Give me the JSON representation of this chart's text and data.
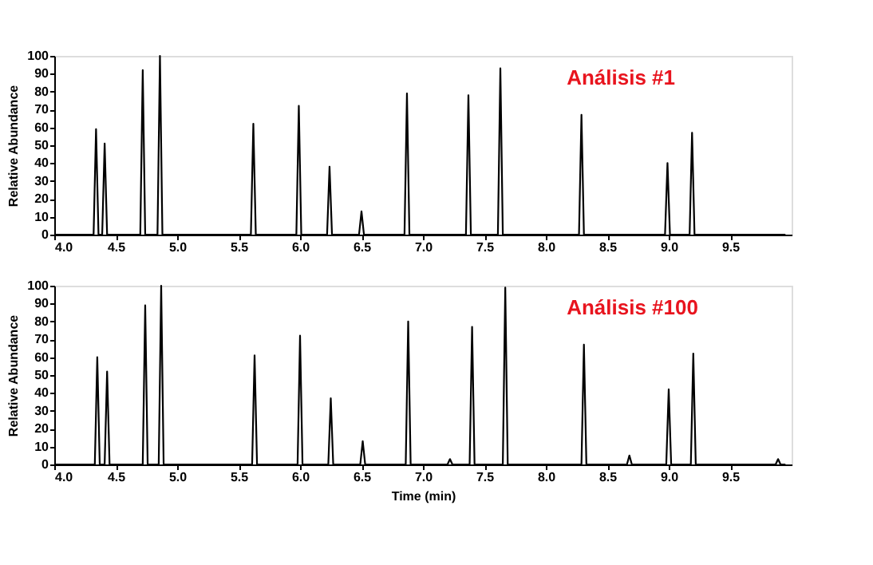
{
  "chart_data": [
    {
      "type": "line",
      "ylabel": "Relative Abundance",
      "annotations": [
        "Análisis #1"
      ],
      "xlim": [
        4.0,
        10.0
      ],
      "ylim": [
        0,
        100
      ],
      "yticks": [
        0,
        10,
        20,
        30,
        40,
        50,
        60,
        70,
        80,
        90,
        100
      ],
      "xticks": [
        {
          "value": 4,
          "label": "4.0"
        },
        {
          "value": 4.5,
          "label": "4.5"
        },
        {
          "value": 5,
          "label": "5.0"
        },
        {
          "value": 5.5,
          "label": "5.5"
        },
        {
          "value": 6,
          "label": "6.0"
        },
        {
          "value": 6.5,
          "label": "6.5"
        },
        {
          "value": 7,
          "label": "7.0"
        },
        {
          "value": 7.5,
          "label": "7.5"
        },
        {
          "value": 8,
          "label": "8.0"
        },
        {
          "value": 8.5,
          "label": "8.5"
        },
        {
          "value": 9,
          "label": "9.0"
        },
        {
          "value": 9.5,
          "label": "9.5"
        }
      ],
      "grid": false,
      "legend": false,
      "marker": "none",
      "line_style": "solid",
      "series": [
        {
          "color": "#000000",
          "x": [
            4.0,
            4.32,
            4.34,
            4.36,
            4.39,
            4.41,
            4.43,
            4.7,
            4.72,
            4.74,
            4.84,
            4.86,
            4.88,
            5.6,
            5.62,
            5.64,
            5.97,
            5.99,
            6.01,
            6.22,
            6.24,
            6.26,
            6.48,
            6.5,
            6.52,
            6.85,
            6.87,
            6.89,
            7.35,
            7.37,
            7.39,
            7.61,
            7.63,
            7.65,
            8.27,
            8.29,
            8.31,
            8.97,
            8.99,
            9.01,
            9.17,
            9.19,
            9.21,
            9.95
          ],
          "values": [
            0,
            0,
            59,
            0,
            0,
            51,
            0,
            0,
            92,
            0,
            0,
            100,
            0,
            0,
            62,
            0,
            0,
            72,
            0,
            0,
            38,
            0,
            0,
            13,
            0,
            0,
            79,
            0,
            0,
            78,
            0,
            0,
            93,
            0,
            0,
            67,
            0,
            0,
            40,
            0,
            0,
            57,
            0,
            0
          ]
        }
      ]
    },
    {
      "type": "line",
      "xlabel": "Time (min)",
      "ylabel": "Relative Abundance",
      "annotations": [
        "Análisis #100"
      ],
      "xlim": [
        4.0,
        10.0
      ],
      "ylim": [
        0,
        100
      ],
      "yticks": [
        0,
        10,
        20,
        30,
        40,
        50,
        60,
        70,
        80,
        90,
        100
      ],
      "xticks": [
        {
          "value": 4,
          "label": "4.0"
        },
        {
          "value": 4.5,
          "label": "4.5"
        },
        {
          "value": 5,
          "label": "5.0"
        },
        {
          "value": 5.5,
          "label": "5.5"
        },
        {
          "value": 6,
          "label": "6.0"
        },
        {
          "value": 6.5,
          "label": "6.5"
        },
        {
          "value": 7,
          "label": "7.0"
        },
        {
          "value": 7.5,
          "label": "7.5"
        },
        {
          "value": 8,
          "label": "8.0"
        },
        {
          "value": 8.5,
          "label": "8.5"
        },
        {
          "value": 9,
          "label": "9.0"
        },
        {
          "value": 9.5,
          "label": "9.5"
        }
      ],
      "grid": false,
      "legend": false,
      "marker": "none",
      "line_style": "solid",
      "series": [
        {
          "color": "#000000",
          "x": [
            4.0,
            4.33,
            4.35,
            4.37,
            4.41,
            4.43,
            4.45,
            4.72,
            4.74,
            4.76,
            4.85,
            4.87,
            4.89,
            5.61,
            5.63,
            5.65,
            5.98,
            6.0,
            6.02,
            6.23,
            6.25,
            6.27,
            6.49,
            6.51,
            6.53,
            6.86,
            6.88,
            6.9,
            7.2,
            7.22,
            7.24,
            7.38,
            7.4,
            7.42,
            7.65,
            7.67,
            7.69,
            8.29,
            8.31,
            8.33,
            8.66,
            8.68,
            8.7,
            8.98,
            9.0,
            9.02,
            9.18,
            9.2,
            9.22,
            9.87,
            9.89,
            9.91,
            9.95
          ],
          "values": [
            0,
            0,
            60,
            0,
            0,
            52,
            0,
            0,
            89,
            0,
            0,
            100,
            0,
            0,
            61,
            0,
            0,
            72,
            0,
            0,
            37,
            0,
            0,
            13,
            0,
            0,
            80,
            0,
            0,
            3,
            0,
            0,
            77,
            0,
            0,
            99,
            0,
            0,
            67,
            0,
            0,
            5,
            0,
            0,
            42,
            0,
            0,
            62,
            0,
            0,
            3,
            0,
            0
          ]
        }
      ]
    }
  ]
}
